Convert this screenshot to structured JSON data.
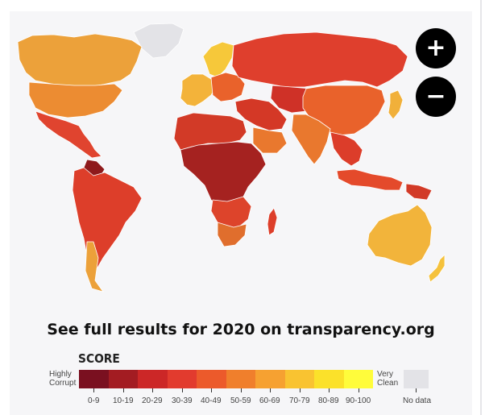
{
  "map": {
    "type": "choropleth",
    "bins": [
      {
        "range": "0-9",
        "color": "#7a1020"
      },
      {
        "range": "10-19",
        "color": "#a31c22"
      },
      {
        "range": "20-29",
        "color": "#cc2727"
      },
      {
        "range": "30-39",
        "color": "#e23b2e"
      },
      {
        "range": "40-49",
        "color": "#ec5a2b"
      },
      {
        "range": "50-59",
        "color": "#f07f2c"
      },
      {
        "range": "60-69",
        "color": "#f6a131"
      },
      {
        "range": "70-79",
        "color": "#f9c331"
      },
      {
        "range": "80-89",
        "color": "#fbe12a"
      },
      {
        "range": "90-100",
        "color": "#fffc3b"
      }
    ],
    "no_data_color": "#e3e3e7",
    "land_colors": {
      "north_america": "#eca13a",
      "usa": "#ec8c32",
      "greenland": "#e3e3e7",
      "mexico_central": "#e0442f",
      "south_america": "#dd3e2a",
      "venezuela": "#8e1a1c",
      "chile_uruguay": "#eca13a",
      "europe_west": "#f3b33a",
      "europe_east": "#e9622b",
      "russia": "#df3f2d",
      "central_asia": "#cf3127",
      "middle_east": "#d43826",
      "gulf": "#e9782e",
      "africa_north": "#d23a27",
      "africa_central": "#a52220",
      "africa_south": "#dd442b",
      "south_africa": "#e06e2d",
      "china": "#e9622b",
      "india": "#e9782e",
      "southeast_asia": "#dc3d2a",
      "japan": "#f1b03a",
      "indonesia": "#e44a2b",
      "png": "#d23a27",
      "australia": "#f2b43b",
      "new_zealand": "#f5c23c",
      "madagascar": "#dd3e2a",
      "scandinavia": "#f6c83a"
    }
  },
  "controls": {
    "zoom_in": "+",
    "zoom_out": "−"
  },
  "cta_text": "See full results for 2020 on transparency.org",
  "legend": {
    "title": "SCORE",
    "left_label": "Highly Corrupt",
    "right_label": "Very Clean",
    "no_data_label": "No data"
  }
}
